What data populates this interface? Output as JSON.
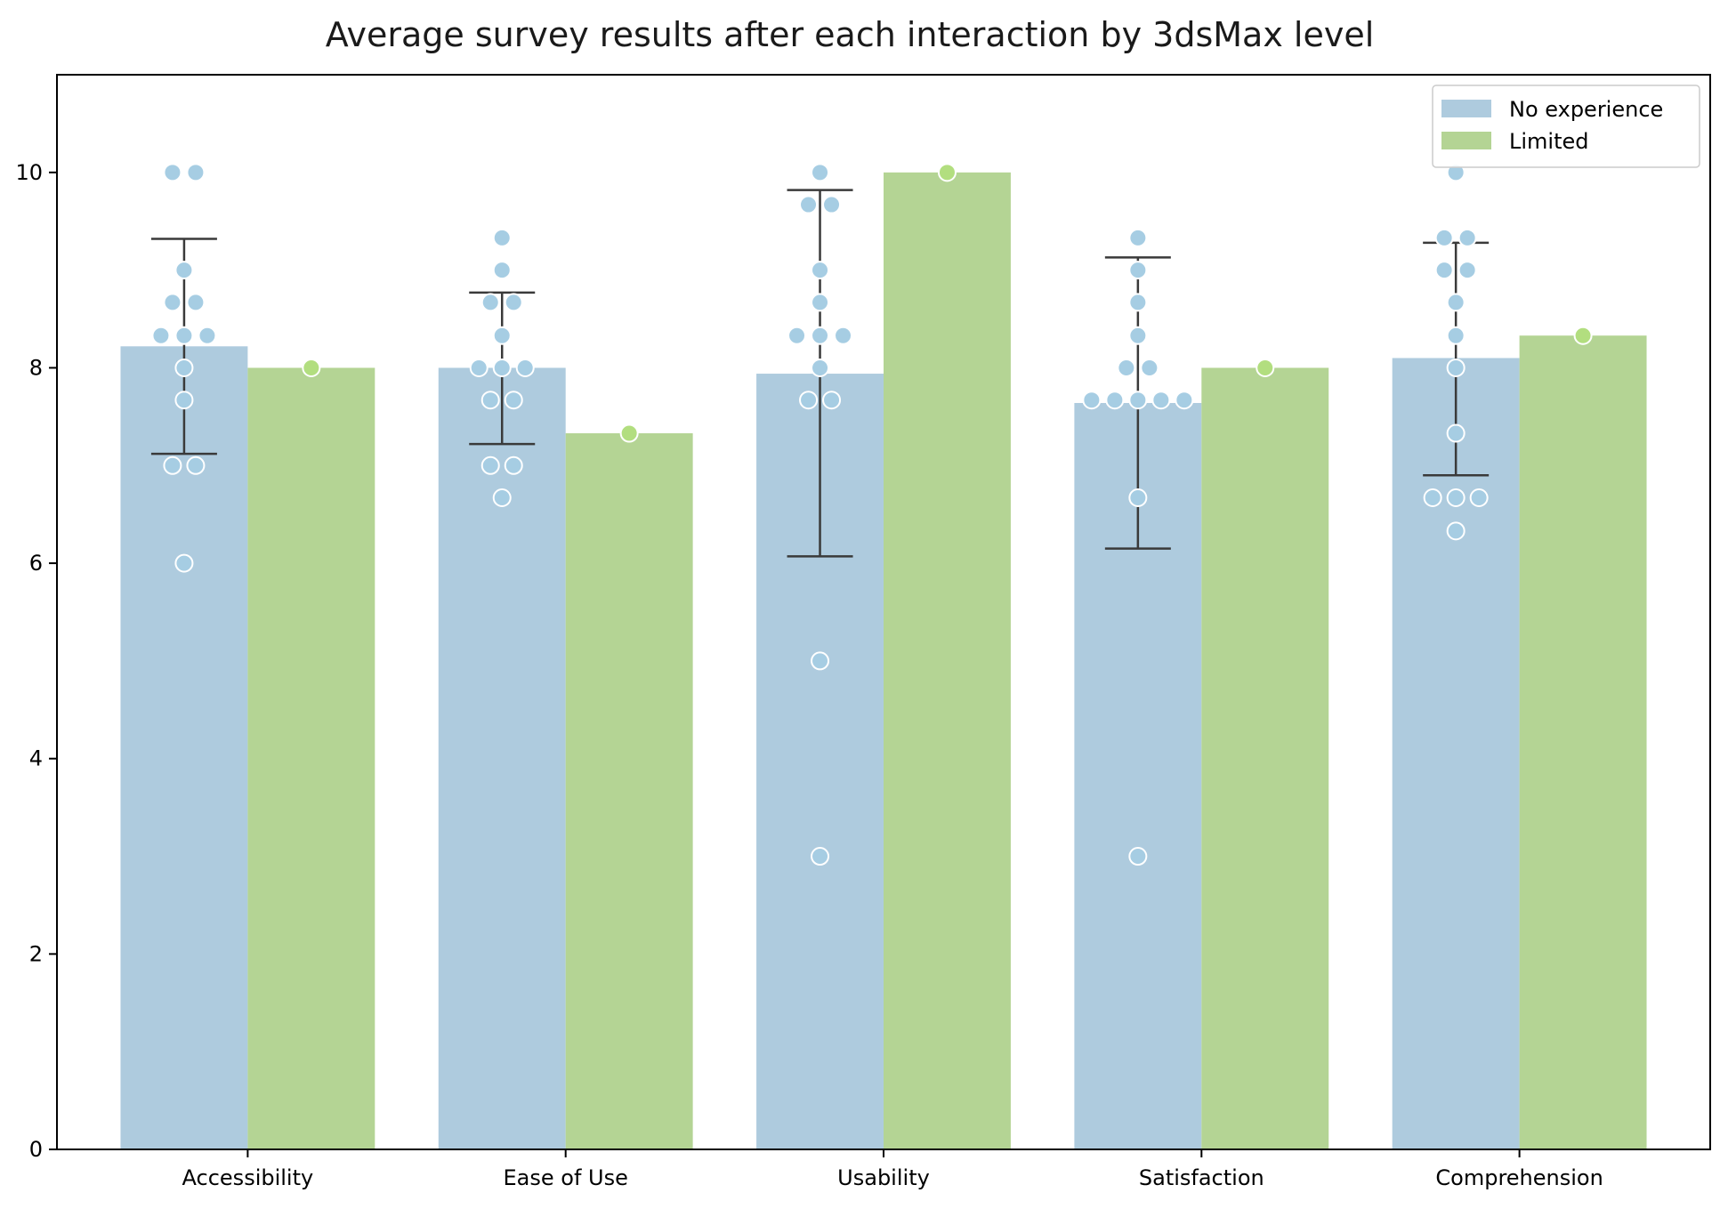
{
  "chart_data": {
    "type": "bar",
    "title": "Average survey results after each interaction by 3dsMax level",
    "xlabel": "",
    "ylabel": "",
    "ylim": [
      0,
      11
    ],
    "yticks": [
      0,
      2,
      4,
      6,
      8,
      10
    ],
    "categories": [
      "Accessibility",
      "Ease of Use",
      "Usability",
      "Satisfaction",
      "Comprehension"
    ],
    "legend_position": "top-right",
    "grid": false,
    "series": [
      {
        "name": "No experience",
        "color": "#aecbde",
        "point_color": "#a6cde3",
        "values": [
          8.22,
          8.0,
          7.94,
          7.64,
          8.1
        ],
        "error": [
          [
            7.12,
            9.32
          ],
          [
            7.22,
            8.77
          ],
          [
            6.07,
            9.82
          ],
          [
            6.15,
            9.13
          ],
          [
            6.9,
            9.28
          ]
        ],
        "points": [
          [
            10,
            10,
            9,
            8.67,
            8.67,
            8.33,
            8.33,
            8.33,
            8,
            7.67,
            7,
            7,
            6
          ],
          [
            9.33,
            9,
            8.67,
            8.67,
            8.33,
            8,
            8,
            8,
            7.67,
            7.67,
            7,
            7,
            6.67
          ],
          [
            10,
            9.67,
            9.67,
            9,
            8.67,
            8.33,
            8.33,
            8.33,
            8,
            7.67,
            7.67,
            5,
            3
          ],
          [
            9.33,
            9,
            8.67,
            8.33,
            8,
            8,
            7.67,
            7.67,
            7.67,
            7.67,
            7.67,
            6.67,
            3
          ],
          [
            10,
            9.33,
            9.33,
            9,
            9,
            8.67,
            8.33,
            8,
            7.33,
            6.67,
            6.67,
            6.67,
            6.33
          ]
        ]
      },
      {
        "name": "Limited",
        "color": "#b4d494",
        "point_color": "#b2de7f",
        "values": [
          8.0,
          7.33,
          10.0,
          8.0,
          8.33
        ],
        "points": [
          [
            8
          ],
          [
            7.33
          ],
          [
            10
          ],
          [
            8
          ],
          [
            8.33
          ]
        ]
      }
    ]
  }
}
